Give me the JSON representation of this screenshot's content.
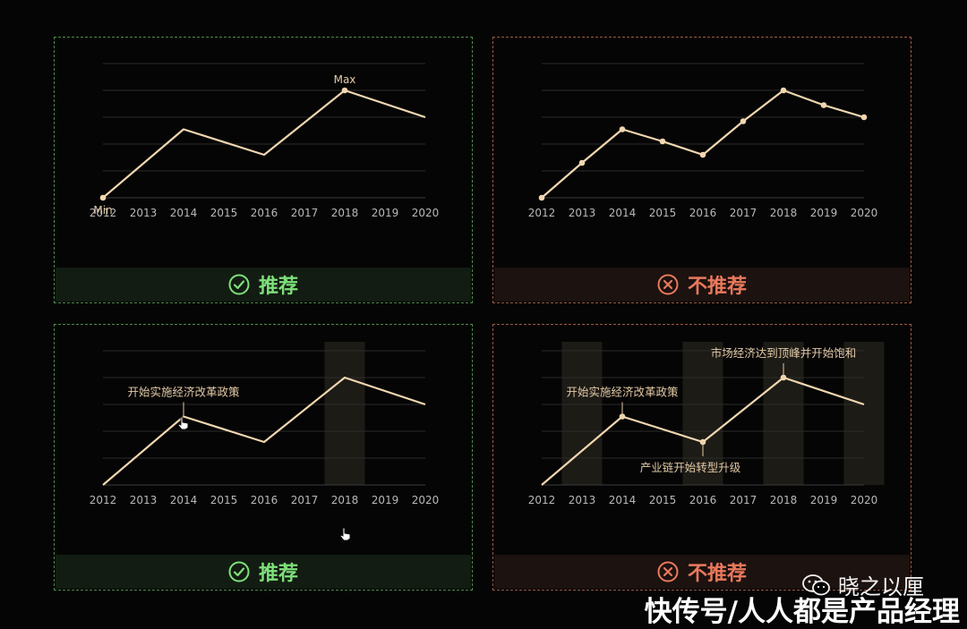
{
  "panels": [
    {
      "verdict": "推荐",
      "chart_data": {
        "type": "line",
        "categories": [
          "2012",
          "2013",
          "2014",
          "2015",
          "2016",
          "2017",
          "2018",
          "2019",
          "2020"
        ],
        "series": [
          {
            "x": [
              "2012",
              "2014",
              "2016",
              "2018",
              "2020"
            ],
            "values": [
              0,
              2.55,
              1.6,
              4,
              3
            ]
          }
        ],
        "markers": "extremes",
        "annotations": [
          {
            "x": "2012",
            "y": 0,
            "text": "Min"
          },
          {
            "x": "2018",
            "y": 4,
            "text": "Max"
          }
        ],
        "ylim": [
          0,
          5
        ]
      }
    },
    {
      "verdict": "不推荐",
      "chart_data": {
        "type": "line",
        "categories": [
          "2012",
          "2013",
          "2014",
          "2015",
          "2016",
          "2017",
          "2018",
          "2019",
          "2020"
        ],
        "series": [
          {
            "x": [
              "2012",
              "2013",
              "2014",
              "2015",
              "2016",
              "2017",
              "2018",
              "2019",
              "2020"
            ],
            "values": [
              0,
              1.3,
              2.55,
              2.1,
              1.6,
              2.85,
              4,
              3.45,
              3
            ]
          }
        ],
        "markers": "all",
        "annotations": [],
        "ylim": [
          0,
          5
        ]
      }
    },
    {
      "verdict": "推荐",
      "chart_data": {
        "type": "line",
        "categories": [
          "2012",
          "2013",
          "2014",
          "2015",
          "2016",
          "2017",
          "2018",
          "2019",
          "2020"
        ],
        "series": [
          {
            "x": [
              "2012",
              "2014",
              "2016",
              "2018",
              "2020"
            ],
            "values": [
              0,
              2.55,
              1.6,
              4,
              3
            ]
          }
        ],
        "markers": "none",
        "highlight_bands": [
          "2018"
        ],
        "annotations": [
          {
            "x": "2014",
            "y": 2.55,
            "text": "开始实施经济改革政策",
            "position": "above-left"
          }
        ],
        "ylim": [
          0,
          5
        ]
      }
    },
    {
      "verdict": "不推荐",
      "chart_data": {
        "type": "line",
        "categories": [
          "2012",
          "2013",
          "2014",
          "2015",
          "2016",
          "2017",
          "2018",
          "2019",
          "2020"
        ],
        "series": [
          {
            "x": [
              "2012",
              "2014",
              "2016",
              "2018",
              "2020"
            ],
            "values": [
              0,
              2.55,
              1.6,
              4,
              3
            ]
          }
        ],
        "markers": "annotated",
        "highlight_bands": [
          "2013",
          "2016",
          "2018",
          "2020"
        ],
        "annotations": [
          {
            "x": "2014",
            "y": 2.55,
            "text": "开始实施经济改革政策",
            "position": "above"
          },
          {
            "x": "2016",
            "y": 1.6,
            "text": "产业链开始转型升级",
            "position": "below"
          },
          {
            "x": "2018",
            "y": 4,
            "text": "市场经济达到顶峰并开始饱和",
            "position": "above"
          }
        ],
        "ylim": [
          0,
          5
        ]
      }
    }
  ],
  "watermark": {
    "account": "晓之以厘"
  },
  "footer": {
    "text": "快传号/人人都是产品经理"
  },
  "colors": {
    "line": "#f1d6b0",
    "grid": "#2b2b2b",
    "tick": "#b8b8b8",
    "annotation": "#e2c9a6",
    "band": "#1d1b16",
    "good": "#7ee07a",
    "bad": "#e9795c"
  }
}
